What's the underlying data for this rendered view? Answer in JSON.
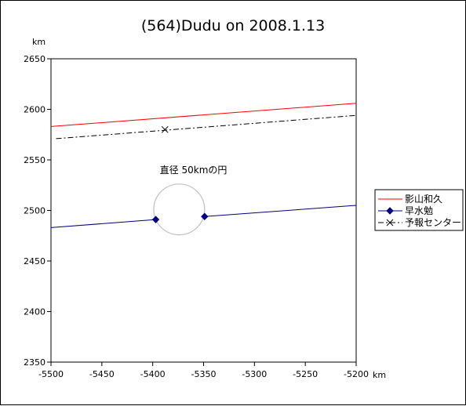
{
  "chart_data": {
    "type": "line",
    "title": "(564)Dudu on 2008.1.13",
    "xlabel": "km",
    "ylabel": "km",
    "xlim": [
      -5500,
      -5200
    ],
    "ylim": [
      2350,
      2650
    ],
    "xticks": [
      -5500,
      -5450,
      -5400,
      -5350,
      -5300,
      -5250,
      -5200
    ],
    "yticks": [
      2350,
      2400,
      2450,
      2500,
      2550,
      2600,
      2650
    ],
    "grid": false,
    "legend_position": "right",
    "series": [
      {
        "name": "影山和久",
        "color": "#ff0000",
        "style": "solid",
        "marker": "none",
        "x": [
          -5500,
          -5200
        ],
        "y": [
          2583,
          2606
        ]
      },
      {
        "name": "早水勉",
        "color": "#000080",
        "style": "solid",
        "marker": "diamond",
        "segments": [
          {
            "x": [
              -5500,
              -5397
            ],
            "y": [
              2483,
              2491
            ]
          },
          {
            "x": [
              -5349,
              -5200
            ],
            "y": [
              2494,
              2505
            ]
          }
        ],
        "points": [
          {
            "x": -5397,
            "y": 2491
          },
          {
            "x": -5349,
            "y": 2494
          }
        ]
      },
      {
        "name": "予報センター",
        "color": "#000000",
        "style": "dashdot",
        "marker": "x",
        "x": [
          -5495,
          -5200
        ],
        "y": [
          2571,
          2594
        ],
        "points": [
          {
            "x": -5388,
            "y": 2580
          }
        ]
      }
    ],
    "annotations": [
      {
        "text": "直径 50kmの円",
        "x": -5360,
        "y": 2537
      }
    ],
    "circle": {
      "center_x": -5374,
      "center_y": 2501,
      "radius": 25,
      "color": "#c0c0c0"
    }
  }
}
